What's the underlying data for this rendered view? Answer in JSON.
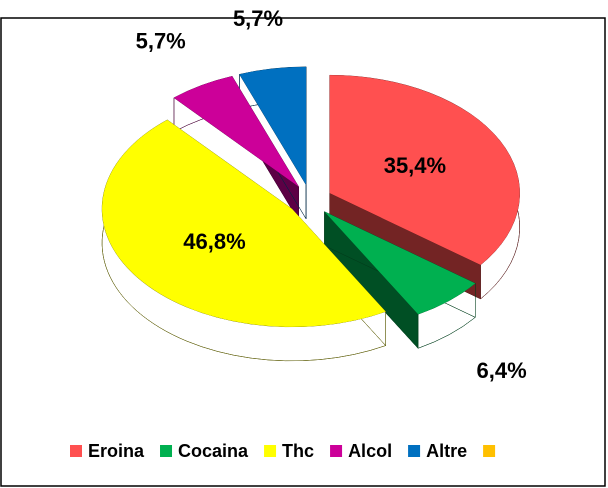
{
  "chart_data": {
    "type": "pie3d",
    "categories": [
      "Eroina",
      "Cocaina",
      "Thc",
      "Alcol",
      "Altre",
      null
    ],
    "values": [
      35.4,
      6.4,
      46.8,
      5.7,
      5.7,
      null
    ],
    "value_labels": [
      "35,4%",
      "6,4%",
      "46,8%",
      "5,7%",
      "5,7%",
      null
    ],
    "colors": [
      "#ff5050",
      "#00b050",
      "#ffff00",
      "#cc0099",
      "#0070c0",
      "#ffc000"
    ],
    "legend": "bottom"
  }
}
